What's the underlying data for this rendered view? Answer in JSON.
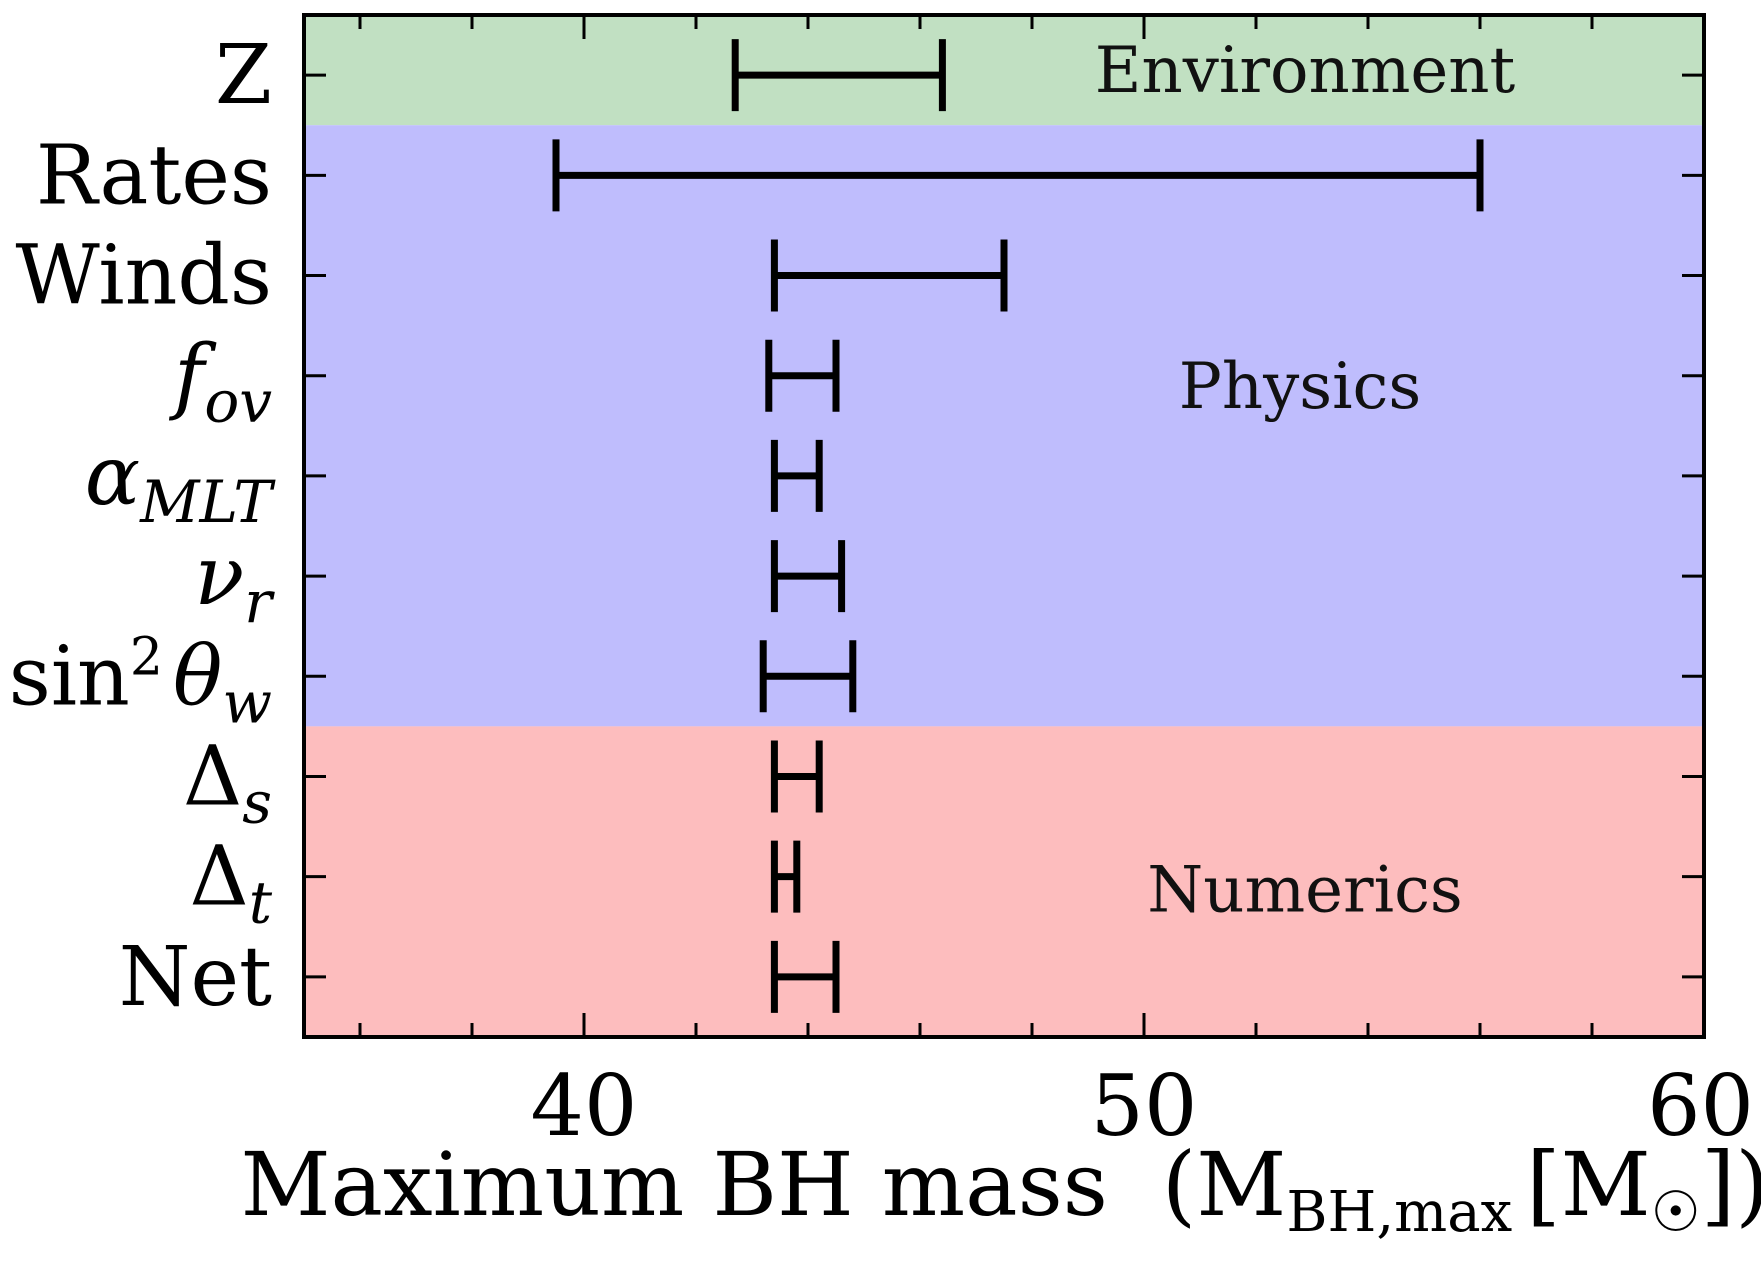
{
  "chart_data": {
    "type": "errorbar-range",
    "xlabel": "Maximum BH mass (M_BH,max [M☉])",
    "xlabel_parts": {
      "main": "Maximum BH mass",
      "open_paren": "(",
      "symbol": "M",
      "subscript": "BH,max",
      "unit_open": "[M",
      "unit_sub": "☉",
      "unit_close": "])"
    },
    "xlim": [
      35,
      60
    ],
    "xticks": [
      40,
      50,
      60
    ],
    "xtick_labels": [
      "40",
      "50",
      "60"
    ],
    "minor_xticks": [
      36,
      38,
      42,
      44,
      46,
      48,
      52,
      54,
      56,
      58
    ],
    "categories": [
      {
        "label": "Z",
        "base": "Z",
        "sub": "",
        "sup": "",
        "italic": false
      },
      {
        "label": "Rates",
        "base": "Rates",
        "sub": "",
        "sup": "",
        "italic": false
      },
      {
        "label": "Winds",
        "base": "Winds",
        "sub": "",
        "sup": "",
        "italic": false
      },
      {
        "label": "f_ov",
        "base": "f",
        "sub": "ov",
        "sup": "",
        "italic": true
      },
      {
        "label": "α_MLT",
        "base": "α",
        "sub": "MLT",
        "sup": "",
        "italic": true
      },
      {
        "label": "ν_r",
        "base": "ν",
        "sub": "r",
        "sup": "",
        "italic": true
      },
      {
        "label": "sin²θ_w",
        "base": "sin",
        "sup": "2",
        "base2": "θ",
        "sub": "w",
        "italic": false
      },
      {
        "label": "Δ_s",
        "base": "Δ",
        "sub": "s",
        "sup": "",
        "italic": false
      },
      {
        "label": "Δ_t",
        "base": "Δ",
        "sub": "t",
        "sup": "",
        "italic": false
      },
      {
        "label": "Net",
        "base": "Net",
        "sub": "",
        "sup": "",
        "italic": false
      }
    ],
    "ranges": [
      {
        "category": "Z",
        "min": 42.7,
        "max": 46.4
      },
      {
        "category": "Rates",
        "min": 39.5,
        "max": 56.0
      },
      {
        "category": "Winds",
        "min": 43.4,
        "max": 47.5
      },
      {
        "category": "f_ov",
        "min": 43.3,
        "max": 44.5
      },
      {
        "category": "α_MLT",
        "min": 43.4,
        "max": 44.2
      },
      {
        "category": "ν_r",
        "min": 43.4,
        "max": 44.6
      },
      {
        "category": "sin²θ_w",
        "min": 43.2,
        "max": 44.8
      },
      {
        "category": "Δ_s",
        "min": 43.4,
        "max": 44.2
      },
      {
        "category": "Δ_t",
        "min": 43.4,
        "max": 43.8
      },
      {
        "category": "Net",
        "min": 43.4,
        "max": 44.5
      }
    ],
    "regions": [
      {
        "label": "Environment",
        "from": "Z",
        "to": "Z",
        "color": "#c1e0c2"
      },
      {
        "label": "Physics",
        "from": "Rates",
        "to": "sin²θ_w",
        "color": "#bfbdfd"
      },
      {
        "label": "Numerics",
        "from": "Δ_s",
        "to": "Net",
        "color": "#fdbdbe"
      }
    ],
    "grid": false,
    "legend": "none"
  }
}
